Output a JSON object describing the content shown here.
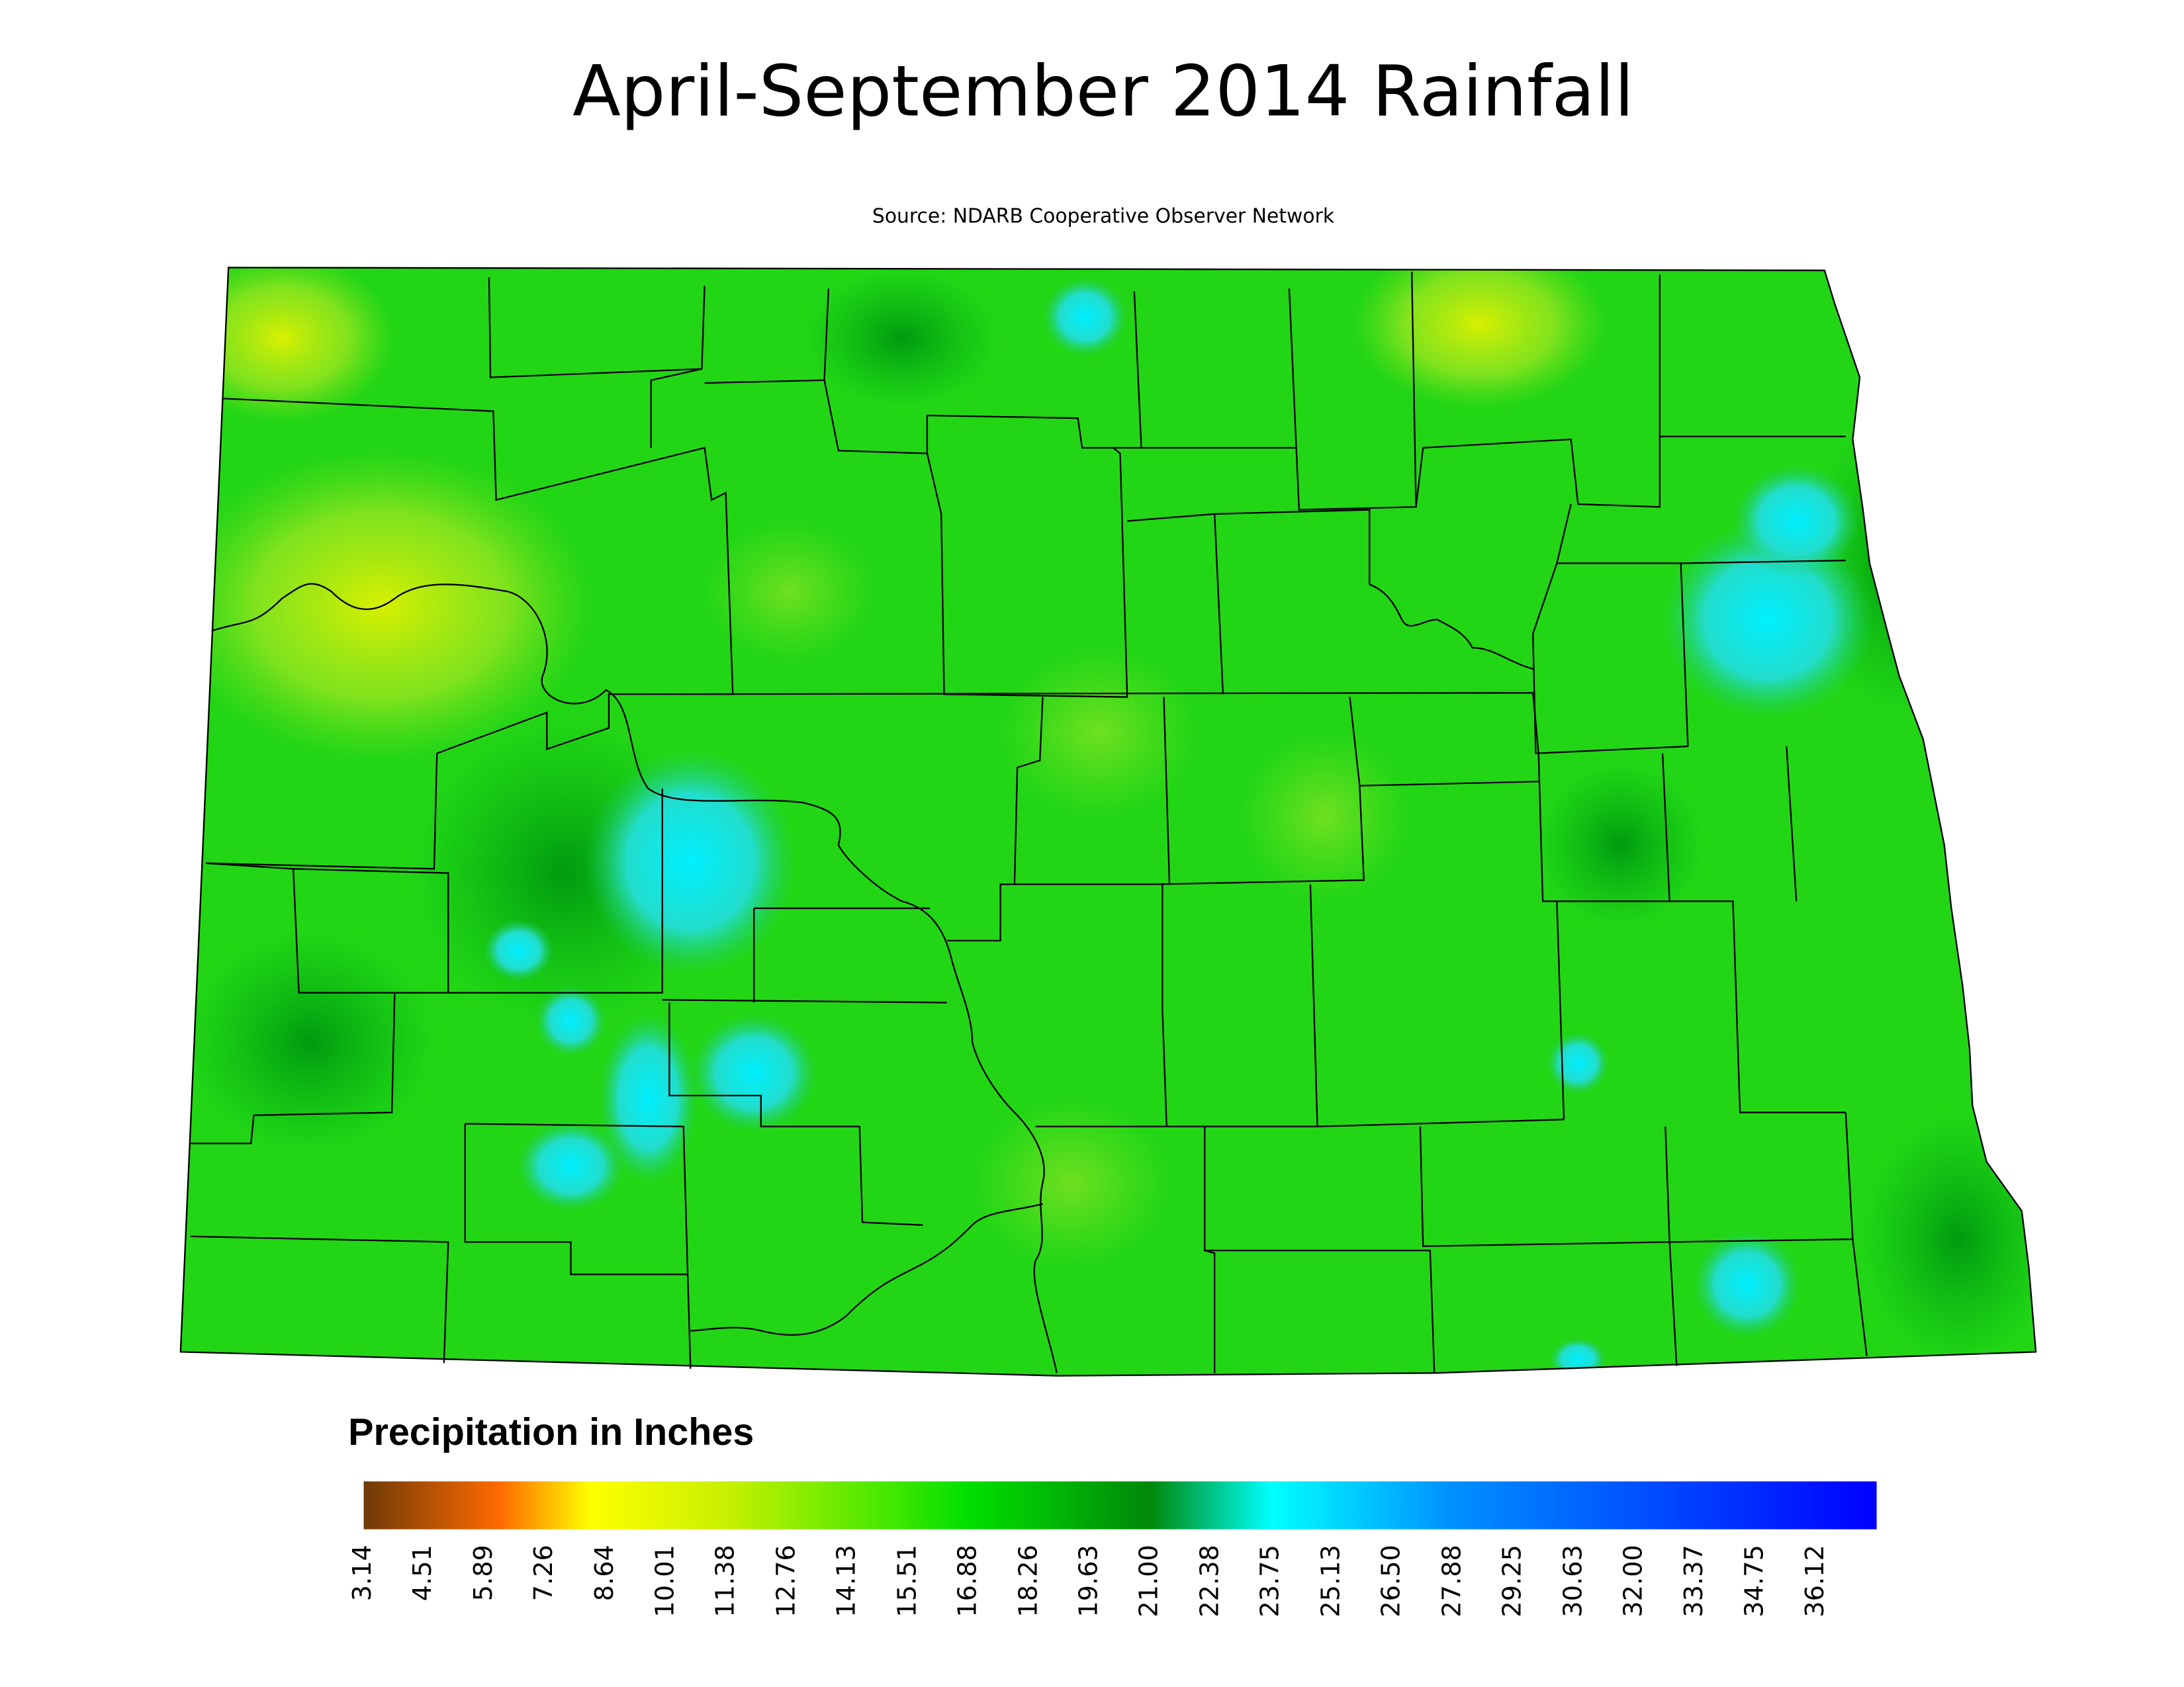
{
  "title": "April-September 2014 Rainfall",
  "subtitle": "Source: NDARB Cooperative Observer Network",
  "legend": {
    "title": "Precipitation in Inches",
    "lim": [
      3.14,
      37.49
    ],
    "ticks": [
      3.14,
      4.51,
      5.89,
      7.26,
      8.64,
      10.01,
      11.38,
      12.76,
      14.13,
      15.51,
      16.88,
      18.26,
      19.63,
      {
        "value": 21,
        "label": "21.00"
      },
      22.38,
      23.75,
      25.13,
      {
        "value": 26.5,
        "label": "26.50"
      },
      27.88,
      29.25,
      30.63,
      {
        "value": 32,
        "label": "32.00"
      },
      33.37,
      34.75,
      36.12
    ]
  }
}
